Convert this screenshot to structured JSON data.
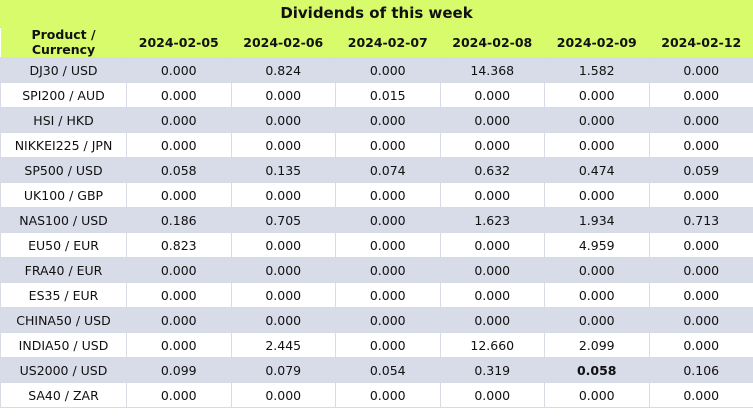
{
  "title": "Dividends of this week",
  "header": {
    "product": "Product / Currency",
    "dates": [
      "2024-02-05",
      "2024-02-06",
      "2024-02-07",
      "2024-02-08",
      "2024-02-09",
      "2024-02-12"
    ]
  },
  "rows": [
    {
      "product": "DJ30 / USD",
      "values": [
        "0.000",
        "0.824",
        "0.000",
        "14.368",
        "1.582",
        "0.000"
      ]
    },
    {
      "product": "SPI200 / AUD",
      "values": [
        "0.000",
        "0.000",
        "0.015",
        "0.000",
        "0.000",
        "0.000"
      ]
    },
    {
      "product": "HSI / HKD",
      "values": [
        "0.000",
        "0.000",
        "0.000",
        "0.000",
        "0.000",
        "0.000"
      ]
    },
    {
      "product": "NIKKEI225 / JPN",
      "values": [
        "0.000",
        "0.000",
        "0.000",
        "0.000",
        "0.000",
        "0.000"
      ]
    },
    {
      "product": "SP500 / USD",
      "values": [
        "0.058",
        "0.135",
        "0.074",
        "0.632",
        "0.474",
        "0.059"
      ]
    },
    {
      "product": "UK100 / GBP",
      "values": [
        "0.000",
        "0.000",
        "0.000",
        "0.000",
        "0.000",
        "0.000"
      ]
    },
    {
      "product": "NAS100 / USD",
      "values": [
        "0.186",
        "0.705",
        "0.000",
        "1.623",
        "1.934",
        "0.713"
      ]
    },
    {
      "product": "EU50 / EUR",
      "values": [
        "0.823",
        "0.000",
        "0.000",
        "0.000",
        "4.959",
        "0.000"
      ]
    },
    {
      "product": "FRA40 / EUR",
      "values": [
        "0.000",
        "0.000",
        "0.000",
        "0.000",
        "0.000",
        "0.000"
      ]
    },
    {
      "product": "ES35 / EUR",
      "values": [
        "0.000",
        "0.000",
        "0.000",
        "0.000",
        "0.000",
        "0.000"
      ]
    },
    {
      "product": "CHINA50 / USD",
      "values": [
        "0.000",
        "0.000",
        "0.000",
        "0.000",
        "0.000",
        "0.000"
      ]
    },
    {
      "product": "INDIA50 / USD",
      "values": [
        "0.000",
        "2.445",
        "0.000",
        "12.660",
        "2.099",
        "0.000"
      ]
    },
    {
      "product": "US2000 / USD",
      "values": [
        "0.099",
        "0.079",
        "0.054",
        "0.319",
        "0.058",
        "0.106"
      ],
      "bold_index": 4
    },
    {
      "product": "SA40 / ZAR",
      "values": [
        "0.000",
        "0.000",
        "0.000",
        "0.000",
        "0.000",
        "0.000"
      ]
    }
  ],
  "colors": {
    "header_bg": "#d7fb6a",
    "row_shaded": "#d8dbe8",
    "row_plain": "#ffffff"
  }
}
